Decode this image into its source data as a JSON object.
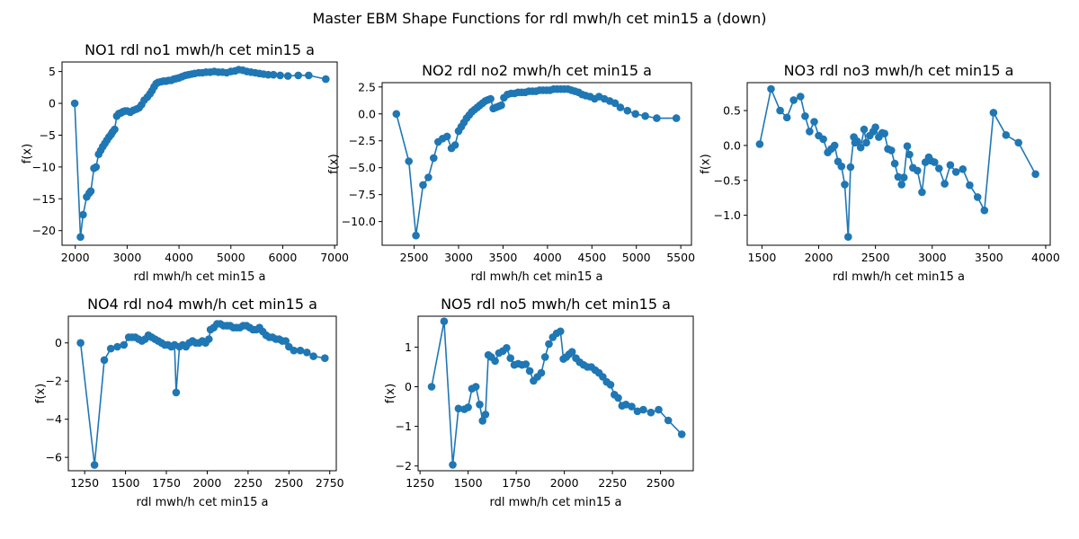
{
  "figure": {
    "title": "Master EBM Shape Functions for rdl  mwh/h cet min15 a (down)"
  },
  "chart_data": [
    {
      "type": "line",
      "title": "NO1 rdl no1 mwh/h cet min15 a",
      "xlabel": "rdl  mwh/h cet min15 a",
      "ylabel": "f(x)",
      "xlim": [
        1745,
        7050
      ],
      "ylim": [
        -22.3,
        6.5
      ],
      "xticks": [
        2000,
        3000,
        4000,
        5000,
        6000,
        7000
      ],
      "yticks": [
        -20,
        -15,
        -10,
        -5,
        0,
        5
      ],
      "color": "#1f77b4",
      "marker": "circle",
      "series": [
        {
          "x": [
            1990,
            2100,
            2150,
            2220,
            2270,
            2300,
            2360,
            2400,
            2450,
            2490,
            2530,
            2570,
            2610,
            2650,
            2690,
            2720,
            2760,
            2800,
            2840,
            2880,
            2920,
            2960,
            3000,
            3060,
            3120,
            3180,
            3230,
            3280,
            3330,
            3390,
            3440,
            3480,
            3520,
            3560,
            3600,
            3650,
            3700,
            3750,
            3800,
            3850,
            3900,
            3950,
            4000,
            4060,
            4120,
            4180,
            4240,
            4300,
            4380,
            4450,
            4520,
            4600,
            4680,
            4760,
            4840,
            4920,
            5000,
            5080,
            5150,
            5230,
            5310,
            5390,
            5470,
            5550,
            5630,
            5720,
            5820,
            5950,
            6100,
            6300,
            6500,
            6830
          ],
          "y": [
            0,
            -21,
            -17.5,
            -14.7,
            -14.1,
            -13.8,
            -10.2,
            -10,
            -8,
            -7.4,
            -6.8,
            -6.3,
            -5.8,
            -5.3,
            -4.9,
            -4.5,
            -4.1,
            -2,
            -1.6,
            -1.5,
            -1.3,
            -1.2,
            -1.2,
            -1.4,
            -1.1,
            -0.9,
            -0.7,
            -0.2,
            0.5,
            1,
            1.5,
            2,
            2.6,
            3.1,
            3.3,
            3.4,
            3.5,
            3.5,
            3.6,
            3.6,
            3.8,
            3.9,
            4,
            4.2,
            4.4,
            4.5,
            4.6,
            4.7,
            4.8,
            4.8,
            4.9,
            4.9,
            5,
            4.9,
            4.9,
            4.8,
            5,
            5.1,
            5.3,
            5.2,
            5.0,
            4.9,
            4.8,
            4.7,
            4.6,
            4.5,
            4.5,
            4.4,
            4.3,
            4.4,
            4.4,
            3.8
          ]
        }
      ]
    },
    {
      "type": "line",
      "title": "NO2 rdl no2 mwh/h cet min15 a",
      "xlabel": "rdl  mwh/h cet min15 a",
      "ylabel": "f(x)",
      "xlim": [
        2140,
        5620
      ],
      "ylim": [
        -12.2,
        2.9
      ],
      "xticks": [
        2500,
        3000,
        3500,
        4000,
        4500,
        5000,
        5500
      ],
      "yticks": [
        -10.0,
        -7.5,
        -5.0,
        -2.5,
        0.0,
        2.5
      ],
      "color": "#1f77b4",
      "marker": "circle",
      "series": [
        {
          "x": [
            2300,
            2440,
            2520,
            2600,
            2660,
            2720,
            2770,
            2820,
            2870,
            2920,
            2960,
            3000,
            3030,
            3060,
            3090,
            3120,
            3150,
            3180,
            3210,
            3240,
            3270,
            3300,
            3330,
            3360,
            3390,
            3420,
            3450,
            3480,
            3510,
            3550,
            3590,
            3630,
            3670,
            3710,
            3750,
            3790,
            3830,
            3870,
            3910,
            3950,
            3990,
            4030,
            4070,
            4110,
            4150,
            4190,
            4230,
            4270,
            4310,
            4350,
            4390,
            4430,
            4480,
            4530,
            4580,
            4640,
            4700,
            4760,
            4820,
            4900,
            4990,
            5100,
            5230,
            5450
          ],
          "y": [
            0,
            -4.4,
            -11.3,
            -6.6,
            -5.9,
            -4.1,
            -2.6,
            -2.3,
            -2.1,
            -3.2,
            -2.9,
            -1.6,
            -1.2,
            -0.8,
            -0.4,
            -0.1,
            0.2,
            0.4,
            0.6,
            0.8,
            1.0,
            1.2,
            1.3,
            1.4,
            0.5,
            0.6,
            0.7,
            0.8,
            1.5,
            1.8,
            1.9,
            1.9,
            2.0,
            2.0,
            2.0,
            2.1,
            2.1,
            2.1,
            2.2,
            2.2,
            2.2,
            2.2,
            2.3,
            2.3,
            2.3,
            2.3,
            2.3,
            2.2,
            2.1,
            2.0,
            1.8,
            1.7,
            1.6,
            1.4,
            1.6,
            1.4,
            1.2,
            1.0,
            0.6,
            0.3,
            0.0,
            -0.2,
            -0.4,
            -0.4
          ]
        }
      ]
    },
    {
      "type": "line",
      "title": "NO3 rdl no3 mwh/h cet min15 a",
      "xlabel": "rdl  mwh/h cet min15 a",
      "ylabel": "f(x)",
      "xlim": [
        1370,
        4040
      ],
      "ylim": [
        -1.43,
        0.9
      ],
      "xticks": [
        1500,
        2000,
        2500,
        3000,
        3500,
        4000
      ],
      "yticks": [
        -1.0,
        -0.5,
        0.0,
        0.5
      ],
      "color": "#1f77b4",
      "marker": "circle",
      "series": [
        {
          "x": [
            1480,
            1580,
            1660,
            1720,
            1780,
            1840,
            1880,
            1920,
            1960,
            2000,
            2040,
            2080,
            2110,
            2140,
            2170,
            2200,
            2230,
            2260,
            2280,
            2310,
            2320,
            2340,
            2370,
            2400,
            2420,
            2450,
            2480,
            2500,
            2530,
            2560,
            2580,
            2610,
            2640,
            2670,
            2700,
            2730,
            2750,
            2780,
            2800,
            2830,
            2870,
            2910,
            2940,
            2970,
            2990,
            3020,
            3060,
            3110,
            3160,
            3210,
            3270,
            3330,
            3400,
            3460,
            3540,
            3650,
            3760,
            3910
          ],
          "y": [
            0.02,
            0.81,
            0.5,
            0.4,
            0.65,
            0.7,
            0.42,
            0.2,
            0.34,
            0.14,
            0.09,
            -0.1,
            -0.05,
            0.0,
            -0.23,
            -0.3,
            -0.56,
            -1.31,
            -0.31,
            0.12,
            0.04,
            0.06,
            -0.03,
            0.23,
            0.04,
            0.14,
            0.2,
            0.26,
            0.12,
            0.18,
            0.17,
            -0.05,
            -0.07,
            -0.26,
            -0.45,
            -0.56,
            -0.46,
            -0.01,
            -0.13,
            -0.32,
            -0.36,
            -0.67,
            -0.24,
            -0.17,
            -0.22,
            -0.24,
            -0.33,
            -0.55,
            -0.28,
            -0.38,
            -0.34,
            -0.57,
            -0.74,
            -0.93,
            0.47,
            0.15,
            0.04,
            -0.41
          ]
        }
      ]
    },
    {
      "type": "line",
      "title": "NO4 rdl no4 mwh/h cet min15 a",
      "xlabel": "rdl  mwh/h cet min15 a",
      "ylabel": "f(x)",
      "xlim": [
        1150,
        2790
      ],
      "ylim": [
        -6.7,
        1.4
      ],
      "xticks": [
        1250,
        1500,
        1750,
        2000,
        2250,
        2500,
        2750
      ],
      "yticks": [
        -6,
        -4,
        -2,
        0
      ],
      "color": "#1f77b4",
      "marker": "circle",
      "series": [
        {
          "x": [
            1225,
            1310,
            1370,
            1410,
            1450,
            1490,
            1520,
            1540,
            1560,
            1580,
            1600,
            1620,
            1640,
            1660,
            1680,
            1700,
            1720,
            1740,
            1760,
            1780,
            1800,
            1810,
            1830,
            1850,
            1870,
            1890,
            1910,
            1930,
            1950,
            1970,
            1990,
            2010,
            2020,
            2040,
            2060,
            2080,
            2100,
            2120,
            2140,
            2160,
            2180,
            2200,
            2220,
            2240,
            2260,
            2280,
            2300,
            2320,
            2340,
            2360,
            2380,
            2400,
            2420,
            2440,
            2460,
            2480,
            2500,
            2530,
            2570,
            2610,
            2650,
            2720
          ],
          "y": [
            0,
            -6.4,
            -0.9,
            -0.3,
            -0.2,
            -0.1,
            0.3,
            0.3,
            0.3,
            0.2,
            0.1,
            0.2,
            0.4,
            0.3,
            0.2,
            0.1,
            0.0,
            -0.1,
            -0.1,
            -0.2,
            -0.1,
            -2.6,
            -0.2,
            -0.1,
            -0.2,
            0.0,
            0.1,
            0.0,
            0.0,
            0.1,
            0.0,
            0.2,
            0.7,
            0.8,
            1.0,
            1.0,
            0.9,
            0.9,
            0.9,
            0.8,
            0.8,
            0.8,
            0.9,
            0.9,
            0.8,
            0.7,
            0.7,
            0.8,
            0.6,
            0.4,
            0.3,
            0.3,
            0.2,
            0.2,
            0.1,
            0.1,
            -0.2,
            -0.4,
            -0.4,
            -0.5,
            -0.7,
            -0.8
          ]
        }
      ]
    },
    {
      "type": "line",
      "title": "NO5 rdl no5 mwh/h cet min15 a",
      "xlabel": "rdl  mwh/h cet min15 a",
      "ylabel": "f(x)",
      "xlim": [
        1240,
        2670
      ],
      "ylim": [
        -2.12,
        1.78
      ],
      "xticks": [
        1250,
        1500,
        1750,
        2000,
        2250,
        2500
      ],
      "yticks": [
        -2,
        -1,
        0,
        1
      ],
      "color": "#1f77b4",
      "marker": "circle",
      "series": [
        {
          "x": [
            1310,
            1375,
            1420,
            1450,
            1480,
            1500,
            1520,
            1540,
            1560,
            1575,
            1590,
            1605,
            1620,
            1640,
            1660,
            1680,
            1700,
            1720,
            1740,
            1760,
            1780,
            1800,
            1820,
            1840,
            1860,
            1880,
            1900,
            1920,
            1940,
            1960,
            1980,
            1995,
            2010,
            2025,
            2040,
            2060,
            2080,
            2100,
            2120,
            2140,
            2160,
            2180,
            2200,
            2220,
            2240,
            2260,
            2280,
            2300,
            2320,
            2350,
            2380,
            2410,
            2450,
            2490,
            2540,
            2610
          ],
          "y": [
            0,
            1.65,
            -1.97,
            -0.55,
            -0.57,
            -0.52,
            -0.05,
            0.0,
            -0.45,
            -0.86,
            -0.7,
            0.8,
            0.75,
            0.65,
            0.85,
            0.9,
            0.98,
            0.72,
            0.55,
            0.58,
            0.55,
            0.57,
            0.4,
            0.15,
            0.25,
            0.35,
            0.75,
            1.08,
            1.25,
            1.35,
            1.4,
            0.7,
            0.75,
            0.82,
            0.88,
            0.72,
            0.62,
            0.55,
            0.5,
            0.5,
            0.42,
            0.35,
            0.25,
            0.12,
            0.05,
            -0.2,
            -0.28,
            -0.48,
            -0.45,
            -0.5,
            -0.62,
            -0.58,
            -0.65,
            -0.58,
            -0.85,
            -1.2
          ]
        }
      ]
    }
  ]
}
